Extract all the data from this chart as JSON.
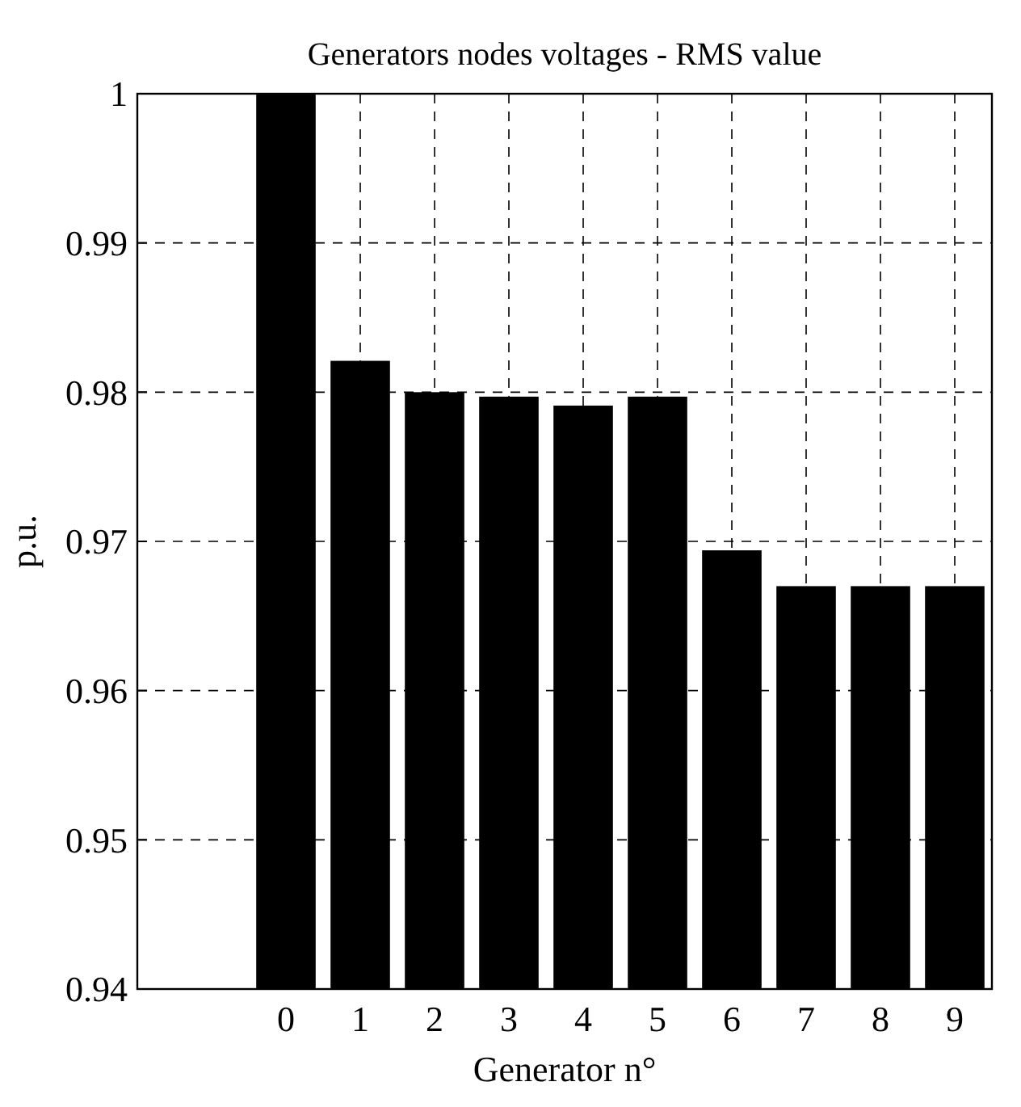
{
  "chart_data": {
    "type": "bar",
    "title": "Generators nodes voltages - RMS value",
    "xlabel": "Generator n°",
    "ylabel": "p.u.",
    "x": [
      0,
      1,
      2,
      3,
      4,
      5,
      6,
      7,
      8,
      9
    ],
    "values": [
      1.0,
      0.9821,
      0.98,
      0.9797,
      0.9791,
      0.9797,
      0.9694,
      0.967,
      0.967,
      0.967
    ],
    "color": "#000000",
    "xlim": [
      -2,
      9.5
    ],
    "xticks": [
      0,
      1,
      2,
      3,
      4,
      5,
      6,
      7,
      8,
      9
    ],
    "ylim": [
      0.94,
      1
    ],
    "yticks": [
      0.94,
      0.95,
      0.96,
      0.97,
      0.98,
      0.99,
      1
    ],
    "grid": true
  }
}
